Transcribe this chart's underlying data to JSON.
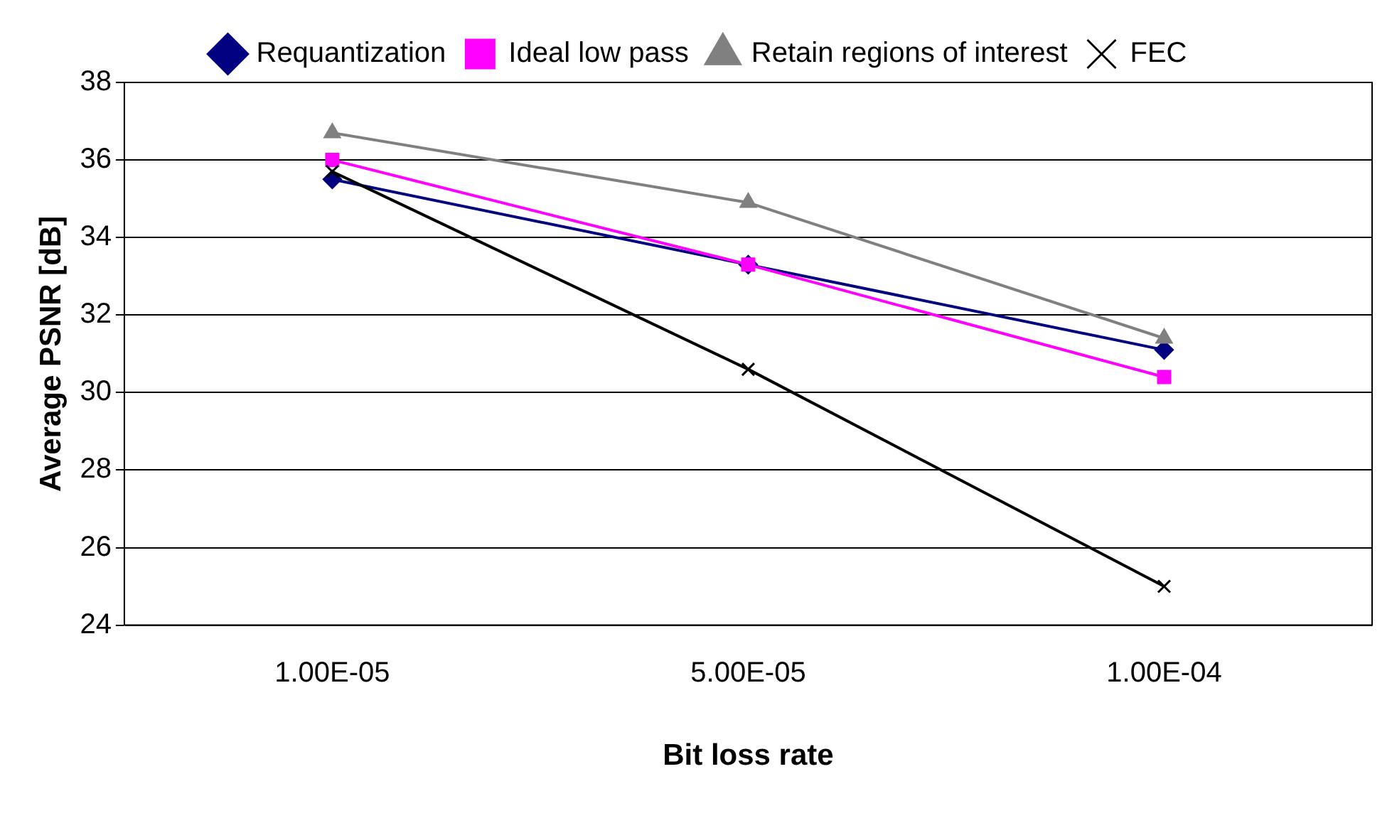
{
  "chart_data": {
    "type": "line",
    "xlabel": "Bit loss rate",
    "ylabel": "Average PSNR [dB]",
    "categories": [
      "1.00E-05",
      "5.00E-05",
      "1.00E-04"
    ],
    "series": [
      {
        "name": "Requantization",
        "color": "#000080",
        "marker": "diamond",
        "values": [
          35.5,
          33.3,
          31.1
        ]
      },
      {
        "name": "Ideal low pass",
        "color": "#ff00ff",
        "marker": "square",
        "values": [
          36.0,
          33.3,
          30.4
        ]
      },
      {
        "name": "Retain regions of interest",
        "color": "#808080",
        "marker": "triangle",
        "values": [
          36.7,
          34.9,
          31.4
        ]
      },
      {
        "name": "FEC",
        "color": "#000000",
        "marker": "cross",
        "values": [
          35.7,
          30.6,
          25.0
        ]
      }
    ],
    "ylim": [
      24,
      38
    ],
    "yticks": [
      24,
      26,
      28,
      30,
      32,
      34,
      36,
      38
    ],
    "grid": "y",
    "legend": "top",
    "line_style": "solid"
  }
}
